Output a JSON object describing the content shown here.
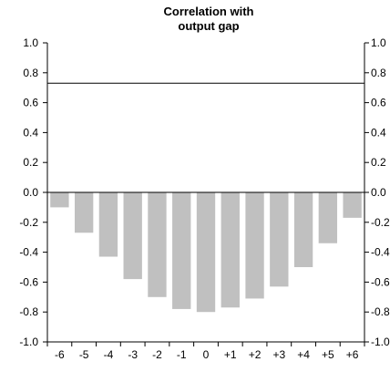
{
  "chart_data": {
    "type": "bar",
    "title_lines": [
      "Correlation with",
      "output gap"
    ],
    "categories": [
      "-6",
      "-5",
      "-4",
      "-3",
      "-2",
      "-1",
      "0",
      "+1",
      "+2",
      "+3",
      "+4",
      "+5",
      "+6"
    ],
    "values": [
      -0.1,
      -0.27,
      -0.43,
      -0.58,
      -0.7,
      -0.78,
      -0.8,
      -0.77,
      -0.71,
      -0.63,
      -0.5,
      -0.34,
      -0.17
    ],
    "ylim": [
      -1.0,
      1.0
    ],
    "yticks_left": [
      "1.0",
      "0.8",
      "0.6",
      "0.4",
      "0.2",
      "0.0",
      "-0.2",
      "-0.4",
      "-0.6",
      "-0.8",
      "-1.0"
    ],
    "yticks_right": [
      "1.0",
      "0.8",
      "0.6",
      "0.4",
      "0.2",
      "0.0",
      "-0.2",
      "-0.4",
      "-0.6",
      "-0.8",
      "-1.0"
    ],
    "reference_line": 0.73,
    "bar_color": "#c0c0c0",
    "grid": false,
    "xlabel": "",
    "ylabel": ""
  }
}
